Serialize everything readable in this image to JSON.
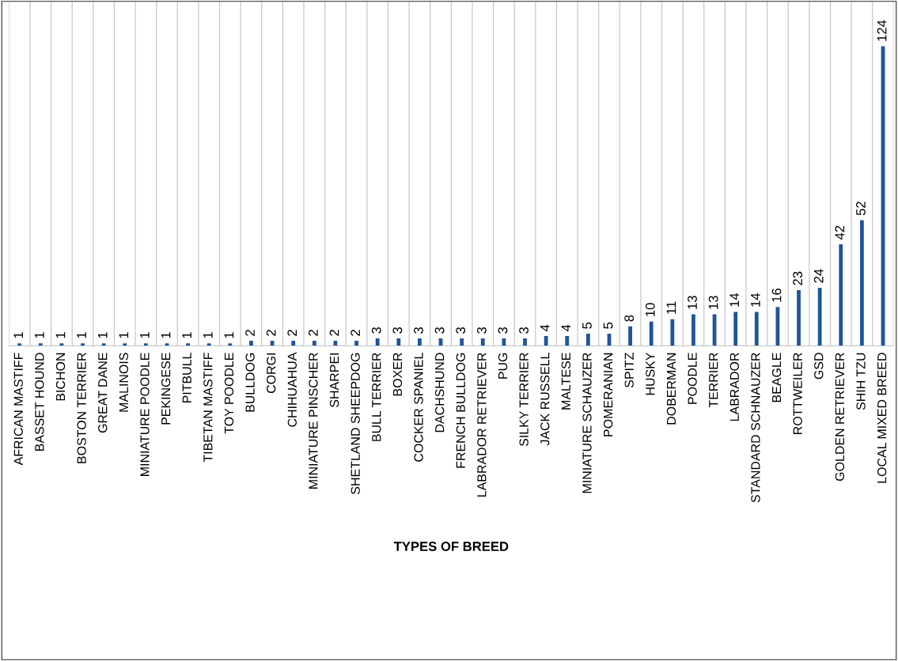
{
  "chart_data": {
    "type": "bar",
    "xlabel": "TYPES OF BREED",
    "categories": [
      "AFRICAN MASTIFF",
      "BASSET HOUND",
      "BICHON",
      "BOSTON TERRIER",
      "GREAT DANE",
      "MALINOIS",
      "MINIATURE POODLE",
      "PEKINGESE",
      "PITBULL",
      "TIBETAN MASTIFF",
      "TOY POODLE",
      "BULLDOG",
      "CORGI",
      "CHIHUAHUA",
      "MINIATURE PINSCHER",
      "SHARPEI",
      "SHETLAND SHEEPDOG",
      "BULL TERRIER",
      "BOXER",
      "COCKER SPANIEL",
      "DACHSHUND",
      "FRENCH BULLDOG",
      "LABRADOR RETRIEVER",
      "PUG",
      "SILKY TERRIER",
      "JACK RUSSELL",
      "MALTESE",
      "MINIATURE SCHAUZER",
      "POMERANIAN",
      "SPITZ",
      "HUSKY",
      "DOBERMAN",
      "POODLE",
      "TERRIER",
      "LABRADOR",
      "STANDARD SCHNAUZER",
      "BEAGLE",
      "ROTTWEILER",
      "GSD",
      "GOLDEN RETRIEVER",
      "SHIH TZU",
      "LOCAL MIXED BREED"
    ],
    "values": [
      1,
      1,
      1,
      1,
      1,
      1,
      1,
      1,
      1,
      1,
      1,
      2,
      2,
      2,
      2,
      2,
      2,
      3,
      3,
      3,
      3,
      3,
      3,
      3,
      3,
      4,
      4,
      5,
      5,
      8,
      10,
      11,
      13,
      13,
      14,
      14,
      16,
      23,
      24,
      42,
      52,
      124
    ],
    "color": "#1f5596",
    "data_labels": true,
    "grid": "x",
    "legend": false
  }
}
